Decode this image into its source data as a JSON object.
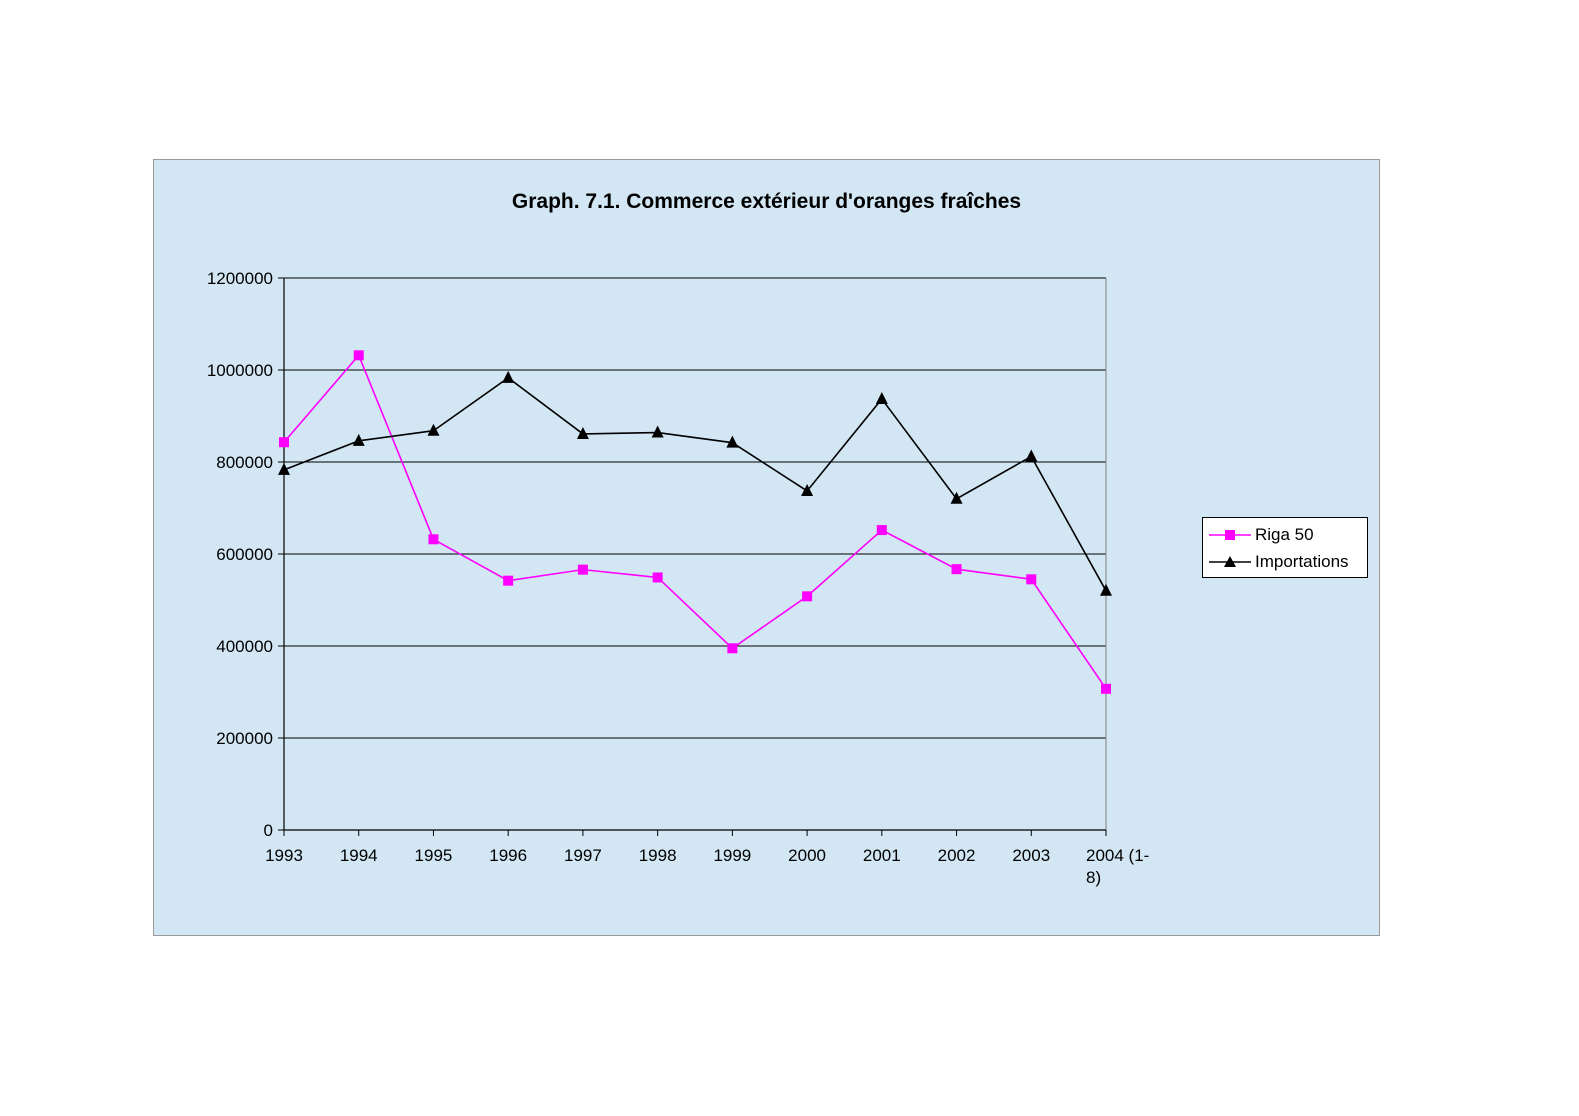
{
  "chart_data": {
    "type": "line",
    "title": "Graph. 7.1. Commerce extérieur d'oranges fraîches",
    "xlabel": "",
    "ylabel": "",
    "categories": [
      "1993",
      "1994",
      "1995",
      "1996",
      "1997",
      "1998",
      "1999",
      "2000",
      "2001",
      "2002",
      "2003",
      "2004 (1-8)"
    ],
    "ylim": [
      0,
      1200000
    ],
    "yticks": [
      "0",
      "200000",
      "400000",
      "600000",
      "800000",
      "1000000",
      "1200000"
    ],
    "grid": true,
    "legend_position": "right",
    "background_color": "#d2e6f4",
    "series": [
      {
        "name": "Riga 50",
        "color": "#ff00ff",
        "marker": "square",
        "values": [
          843000,
          1032000,
          632000,
          542000,
          566000,
          549000,
          395000,
          508000,
          652000,
          567000,
          545000,
          307000
        ]
      },
      {
        "name": "Importations",
        "color": "#000000",
        "marker": "triangle",
        "values": [
          783000,
          846000,
          868000,
          983000,
          861000,
          864000,
          842000,
          737000,
          937000,
          720000,
          812000,
          520000
        ]
      }
    ]
  }
}
